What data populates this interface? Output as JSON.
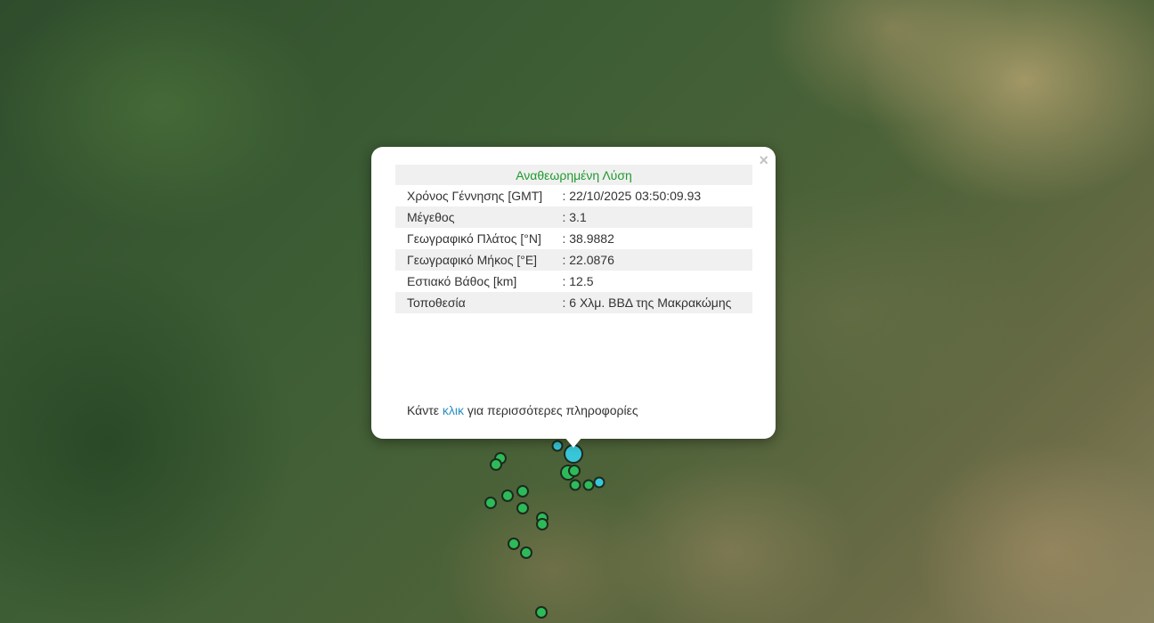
{
  "popup": {
    "title": "Αναθεωρημένη Λύση",
    "close_icon": "×",
    "rows": [
      {
        "label": "Χρόνος Γέννησης [GMT]",
        "value": ": 22/10/2025 03:50:09.93"
      },
      {
        "label": "Μέγεθος",
        "value": ": 3.1"
      },
      {
        "label": "Γεωγραφικό Πλάτος [°N]",
        "value": ": 38.9882"
      },
      {
        "label": "Γεωγραφικό Μήκος [°E]",
        "value": ": 22.0876"
      },
      {
        "label": "Εστιακό Βάθος [km]",
        "value": ": 12.5"
      },
      {
        "label": "Τοποθεσία",
        "value": ": 6 Χλμ. ΒΒΔ της Μακρακώμης"
      }
    ],
    "footer_pre": "Κάντε ",
    "footer_link": "κλικ",
    "footer_post": " για περισσότερες πληροφορίες"
  },
  "colors": {
    "title_green": "#1e9a2e",
    "link_blue": "#2a8fc4",
    "marker_green": "#2dbb5a",
    "marker_cyan": "#38c6d8"
  }
}
